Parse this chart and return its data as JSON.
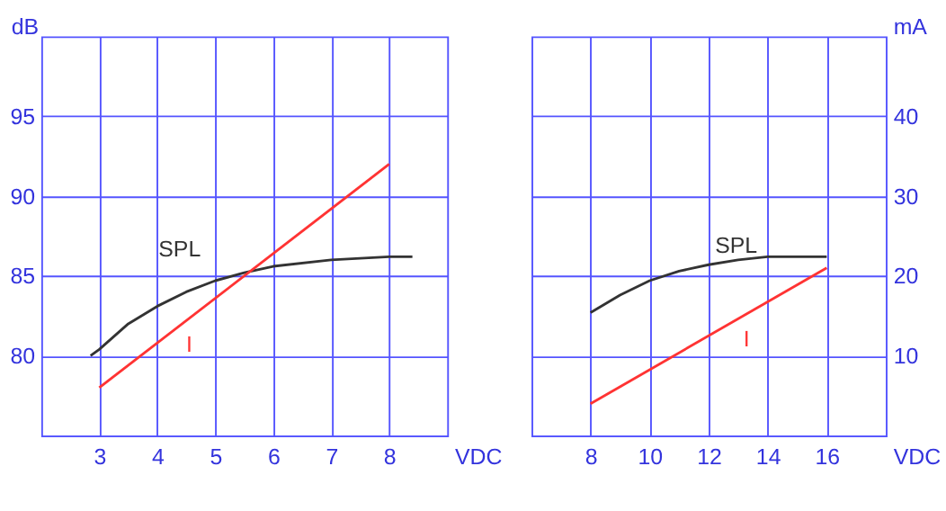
{
  "chart_data": [
    {
      "type": "line",
      "xlabel": "VDC",
      "ylabel": "dB",
      "xlim": [
        2,
        9
      ],
      "xticks": [
        3,
        4,
        5,
        6,
        7,
        8
      ],
      "ylim": [
        75,
        100
      ],
      "yticks": [
        80,
        85,
        90,
        95
      ],
      "y2lim": [
        0,
        50
      ],
      "tick_labels": [
        "x",
        "y"
      ],
      "grid": true,
      "legend": false,
      "line_style": "solid",
      "series": [
        {
          "name": "SPL",
          "color": "#333333",
          "axis": "y",
          "x": [
            2.85,
            3,
            3.5,
            4,
            4.5,
            5,
            5.5,
            6,
            7,
            8,
            8.4
          ],
          "values": [
            80.0,
            80.4,
            82.0,
            83.1,
            84.0,
            84.7,
            85.2,
            85.6,
            86.0,
            86.2,
            86.2
          ]
        },
        {
          "name": "I",
          "color": "#ff3333",
          "axis": "y2",
          "x": [
            3,
            8
          ],
          "values": [
            6,
            34
          ]
        }
      ]
    },
    {
      "type": "line",
      "xlabel": "VDC",
      "y2label": "mA",
      "xlim": [
        6,
        18
      ],
      "xticks": [
        8,
        10,
        12,
        14,
        16
      ],
      "ylim": [
        75,
        100
      ],
      "y2lim": [
        0,
        50
      ],
      "y2ticks": [
        10,
        20,
        30,
        40
      ],
      "tick_labels": [
        "x",
        "y2"
      ],
      "grid": true,
      "legend": false,
      "line_style": "solid",
      "series": [
        {
          "name": "SPL",
          "color": "#333333",
          "axis": "y",
          "x": [
            8,
            9,
            10,
            11,
            12,
            13,
            14,
            16
          ],
          "values": [
            82.7,
            83.8,
            84.7,
            85.3,
            85.7,
            86.0,
            86.2,
            86.2
          ]
        },
        {
          "name": "I",
          "color": "#ff3333",
          "axis": "y2",
          "x": [
            8,
            16
          ],
          "values": [
            4,
            21
          ]
        }
      ]
    }
  ]
}
